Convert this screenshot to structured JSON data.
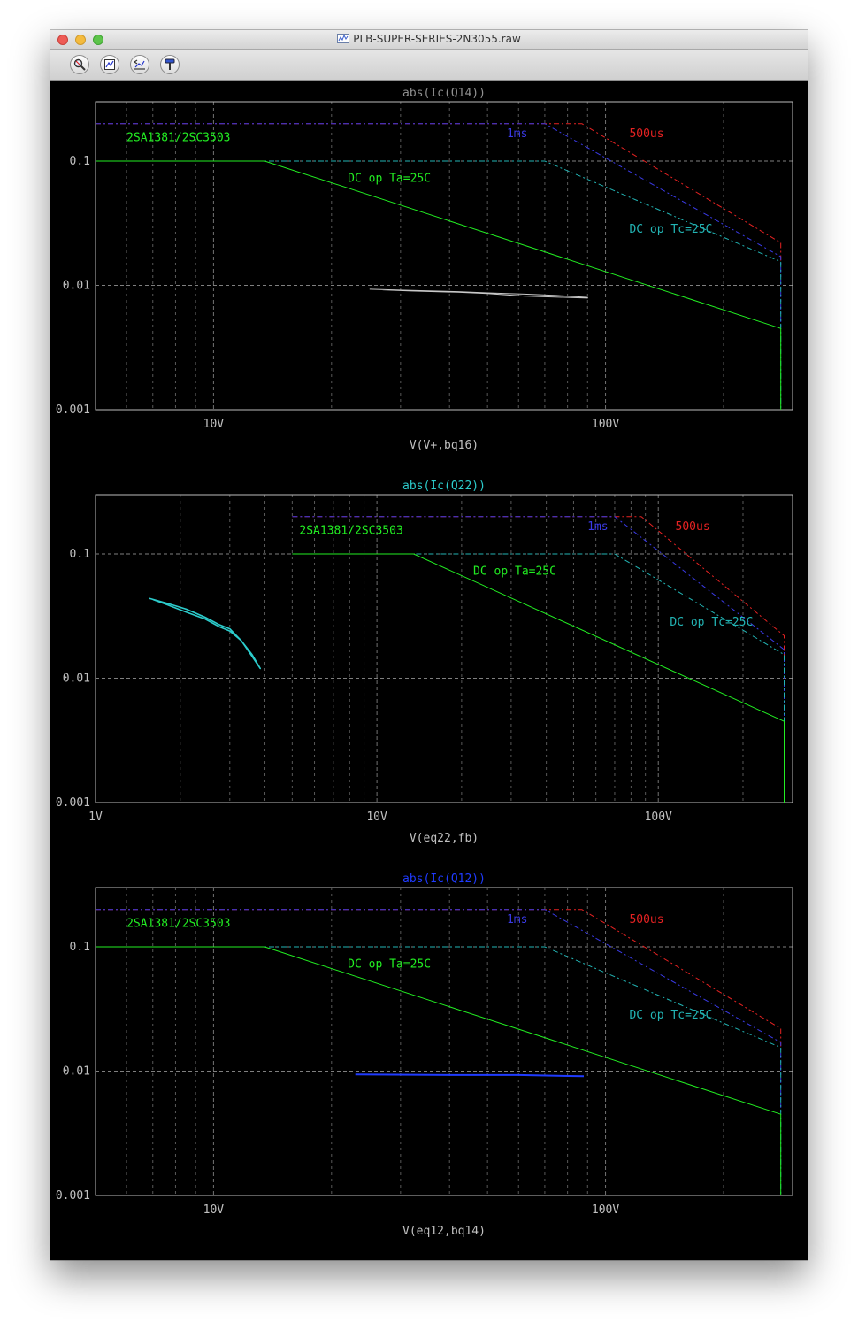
{
  "window": {
    "title": "PLB-SUPER-SERIES-2N3055.raw"
  },
  "toolbar": {
    "buttons": [
      {
        "name": "zoom-area-button",
        "icon": "magnifier-icon"
      },
      {
        "name": "zoom-fit-button",
        "icon": "zoom-extents-icon"
      },
      {
        "name": "zoom-back-button",
        "icon": "zoom-back-icon"
      },
      {
        "name": "probe-button",
        "icon": "probe-icon"
      }
    ]
  },
  "colors": {
    "background": "#000000",
    "grid": "#7f7f7f",
    "tick_label": "#c0c0c0",
    "ta": "#22ee22",
    "tc": "#22b4b4",
    "ms1": "#3a3ae6",
    "us500": "#e62222",
    "trace_q14": "#c8c8c8",
    "trace_q22": "#2ccccc",
    "trace_q12": "#1f3bff"
  },
  "chart_data": [
    {
      "type": "line",
      "title": "abs(Ic(Q14))",
      "title_color": "#909090",
      "xlabel": "V(V+,bq16)",
      "xlabel_color": "#c0c0c0",
      "x_scale": "log",
      "y_scale": "log",
      "xlim": [
        5,
        300
      ],
      "ylim": [
        0.001,
        0.3
      ],
      "grid": true,
      "x_tick_labels": [
        {
          "value": 10,
          "label": "10V"
        },
        {
          "value": 100,
          "label": "100V"
        }
      ],
      "y_tick_labels": [
        {
          "value": 0.001,
          "label": "0.001"
        },
        {
          "value": 0.01,
          "label": "0.01"
        },
        {
          "value": 0.1,
          "label": "0.1"
        }
      ],
      "annotations": [
        {
          "text": "2SA1381/2SC3503",
          "x": 6.0,
          "y": 0.145,
          "color": "ta"
        },
        {
          "text": "DC op Ta=25C",
          "x": 22,
          "y": 0.068,
          "color": "ta"
        },
        {
          "text": "1ms",
          "x": 56,
          "y": 0.156,
          "color": "ms1"
        },
        {
          "text": "500us",
          "x": 115,
          "y": 0.156,
          "color": "us500"
        },
        {
          "text": "DC op Tc=25C",
          "x": 115,
          "y": 0.0265,
          "color": "tc"
        }
      ],
      "series": [
        {
          "color": "us500",
          "dash": "6,3,2,3",
          "x": [
            5,
            87,
            280,
            280
          ],
          "y": [
            0.2,
            0.2,
            0.022,
            0.015
          ]
        },
        {
          "color": "ms1",
          "dash": "6,3,2,3",
          "x": [
            5,
            70,
            280,
            280
          ],
          "y": [
            0.2,
            0.2,
            0.017,
            0.0045
          ]
        },
        {
          "color": "tc",
          "dash": "6,3,2,3",
          "x": [
            5,
            70,
            280,
            280
          ],
          "y": [
            0.1,
            0.1,
            0.0155,
            0.001
          ]
        },
        {
          "color": "ta",
          "x": [
            5,
            13.5,
            280,
            280
          ],
          "y": [
            0.1,
            0.1,
            0.0045,
            0.001
          ]
        },
        {
          "color": "trace_q14",
          "x": [
            25,
            32,
            42,
            50,
            56,
            62,
            75,
            90,
            90,
            80,
            70,
            62,
            56,
            50,
            42,
            32,
            27
          ],
          "y": [
            0.0093,
            0.0091,
            0.0089,
            0.0087,
            0.0086,
            0.0085,
            0.0083,
            0.008,
            0.0079,
            0.008,
            0.0081,
            0.0082,
            0.0084,
            0.0086,
            0.0088,
            0.009,
            0.0092
          ]
        }
      ]
    },
    {
      "type": "line",
      "title": "abs(Ic(Q22))",
      "title_color": "#2ccccc",
      "xlabel": "V(eq22,fb)",
      "xlabel_color": "#c0c0c0",
      "x_scale": "log",
      "y_scale": "log",
      "xlim": [
        1,
        300
      ],
      "ylim": [
        0.001,
        0.3
      ],
      "grid": true,
      "x_tick_labels": [
        {
          "value": 1,
          "label": "1V"
        },
        {
          "value": 10,
          "label": "10V"
        },
        {
          "value": 100,
          "label": "100V"
        }
      ],
      "y_tick_labels": [
        {
          "value": 0.001,
          "label": "0.001"
        },
        {
          "value": 0.01,
          "label": "0.01"
        },
        {
          "value": 0.1,
          "label": "0.1"
        }
      ],
      "annotations": [
        {
          "text": "2SA1381/2SC3503",
          "x": 5.3,
          "y": 0.145,
          "color": "ta"
        },
        {
          "text": "DC op Ta=25C",
          "x": 22,
          "y": 0.068,
          "color": "ta"
        },
        {
          "text": "1ms",
          "x": 56,
          "y": 0.156,
          "color": "ms1"
        },
        {
          "text": "500us",
          "x": 115,
          "y": 0.156,
          "color": "us500"
        },
        {
          "text": "DC op Tc=25C",
          "x": 110,
          "y": 0.0265,
          "color": "tc"
        }
      ],
      "series": [
        {
          "color": "us500",
          "dash": "6,3,2,3",
          "x": [
            5,
            87,
            280,
            280
          ],
          "y": [
            0.2,
            0.2,
            0.022,
            0.015
          ]
        },
        {
          "color": "ms1",
          "dash": "6,3,2,3",
          "x": [
            5,
            70,
            280,
            280
          ],
          "y": [
            0.2,
            0.2,
            0.017,
            0.0045
          ]
        },
        {
          "color": "tc",
          "dash": "6,3,2,3",
          "x": [
            5,
            70,
            280,
            280
          ],
          "y": [
            0.1,
            0.1,
            0.0155,
            0.001
          ]
        },
        {
          "color": "ta",
          "x": [
            5,
            13.5,
            280,
            280
          ],
          "y": [
            0.1,
            0.1,
            0.0045,
            0.001
          ]
        },
        {
          "color": "trace_q22",
          "x": [
            1.55,
            1.8,
            2.1,
            2.45,
            2.75,
            3.0,
            3.3,
            3.6,
            3.85,
            3.6,
            3.3,
            3.0,
            2.75,
            2.45,
            2.1,
            1.8,
            1.6
          ],
          "y": [
            0.044,
            0.04,
            0.036,
            0.031,
            0.027,
            0.025,
            0.02,
            0.015,
            0.012,
            0.0155,
            0.02,
            0.024,
            0.026,
            0.03,
            0.034,
            0.039,
            0.043
          ]
        }
      ]
    },
    {
      "type": "line",
      "title": "abs(Ic(Q12))",
      "title_color": "#1f3bff",
      "xlabel": "V(eq12,bq14)",
      "xlabel_color": "#c0c0c0",
      "x_scale": "log",
      "y_scale": "log",
      "xlim": [
        5,
        300
      ],
      "ylim": [
        0.001,
        0.3
      ],
      "grid": true,
      "x_tick_labels": [
        {
          "value": 10,
          "label": "10V"
        },
        {
          "value": 100,
          "label": "100V"
        }
      ],
      "y_tick_labels": [
        {
          "value": 0.001,
          "label": "0.001"
        },
        {
          "value": 0.01,
          "label": "0.01"
        },
        {
          "value": 0.1,
          "label": "0.1"
        }
      ],
      "annotations": [
        {
          "text": "2SA1381/2SC3503",
          "x": 6.0,
          "y": 0.145,
          "color": "ta"
        },
        {
          "text": "DC op Ta=25C",
          "x": 22,
          "y": 0.068,
          "color": "ta"
        },
        {
          "text": "1ms",
          "x": 56,
          "y": 0.156,
          "color": "ms1"
        },
        {
          "text": "500us",
          "x": 115,
          "y": 0.156,
          "color": "us500"
        },
        {
          "text": "DC op Tc=25C",
          "x": 115,
          "y": 0.0265,
          "color": "tc"
        }
      ],
      "series": [
        {
          "color": "us500",
          "dash": "6,3,2,3",
          "x": [
            5,
            87,
            280,
            280
          ],
          "y": [
            0.2,
            0.2,
            0.022,
            0.015
          ]
        },
        {
          "color": "ms1",
          "dash": "6,3,2,3",
          "x": [
            5,
            70,
            280,
            280
          ],
          "y": [
            0.2,
            0.2,
            0.017,
            0.0045
          ]
        },
        {
          "color": "tc",
          "dash": "6,3,2,3",
          "x": [
            5,
            70,
            280,
            280
          ],
          "y": [
            0.1,
            0.1,
            0.0155,
            0.001
          ]
        },
        {
          "color": "ta",
          "x": [
            5,
            13.5,
            280,
            280
          ],
          "y": [
            0.1,
            0.1,
            0.0045,
            0.001
          ]
        },
        {
          "color": "trace_q12",
          "x": [
            23,
            40,
            60,
            88
          ],
          "y": [
            0.0094,
            0.0093,
            0.0093,
            0.0091
          ]
        }
      ]
    }
  ]
}
